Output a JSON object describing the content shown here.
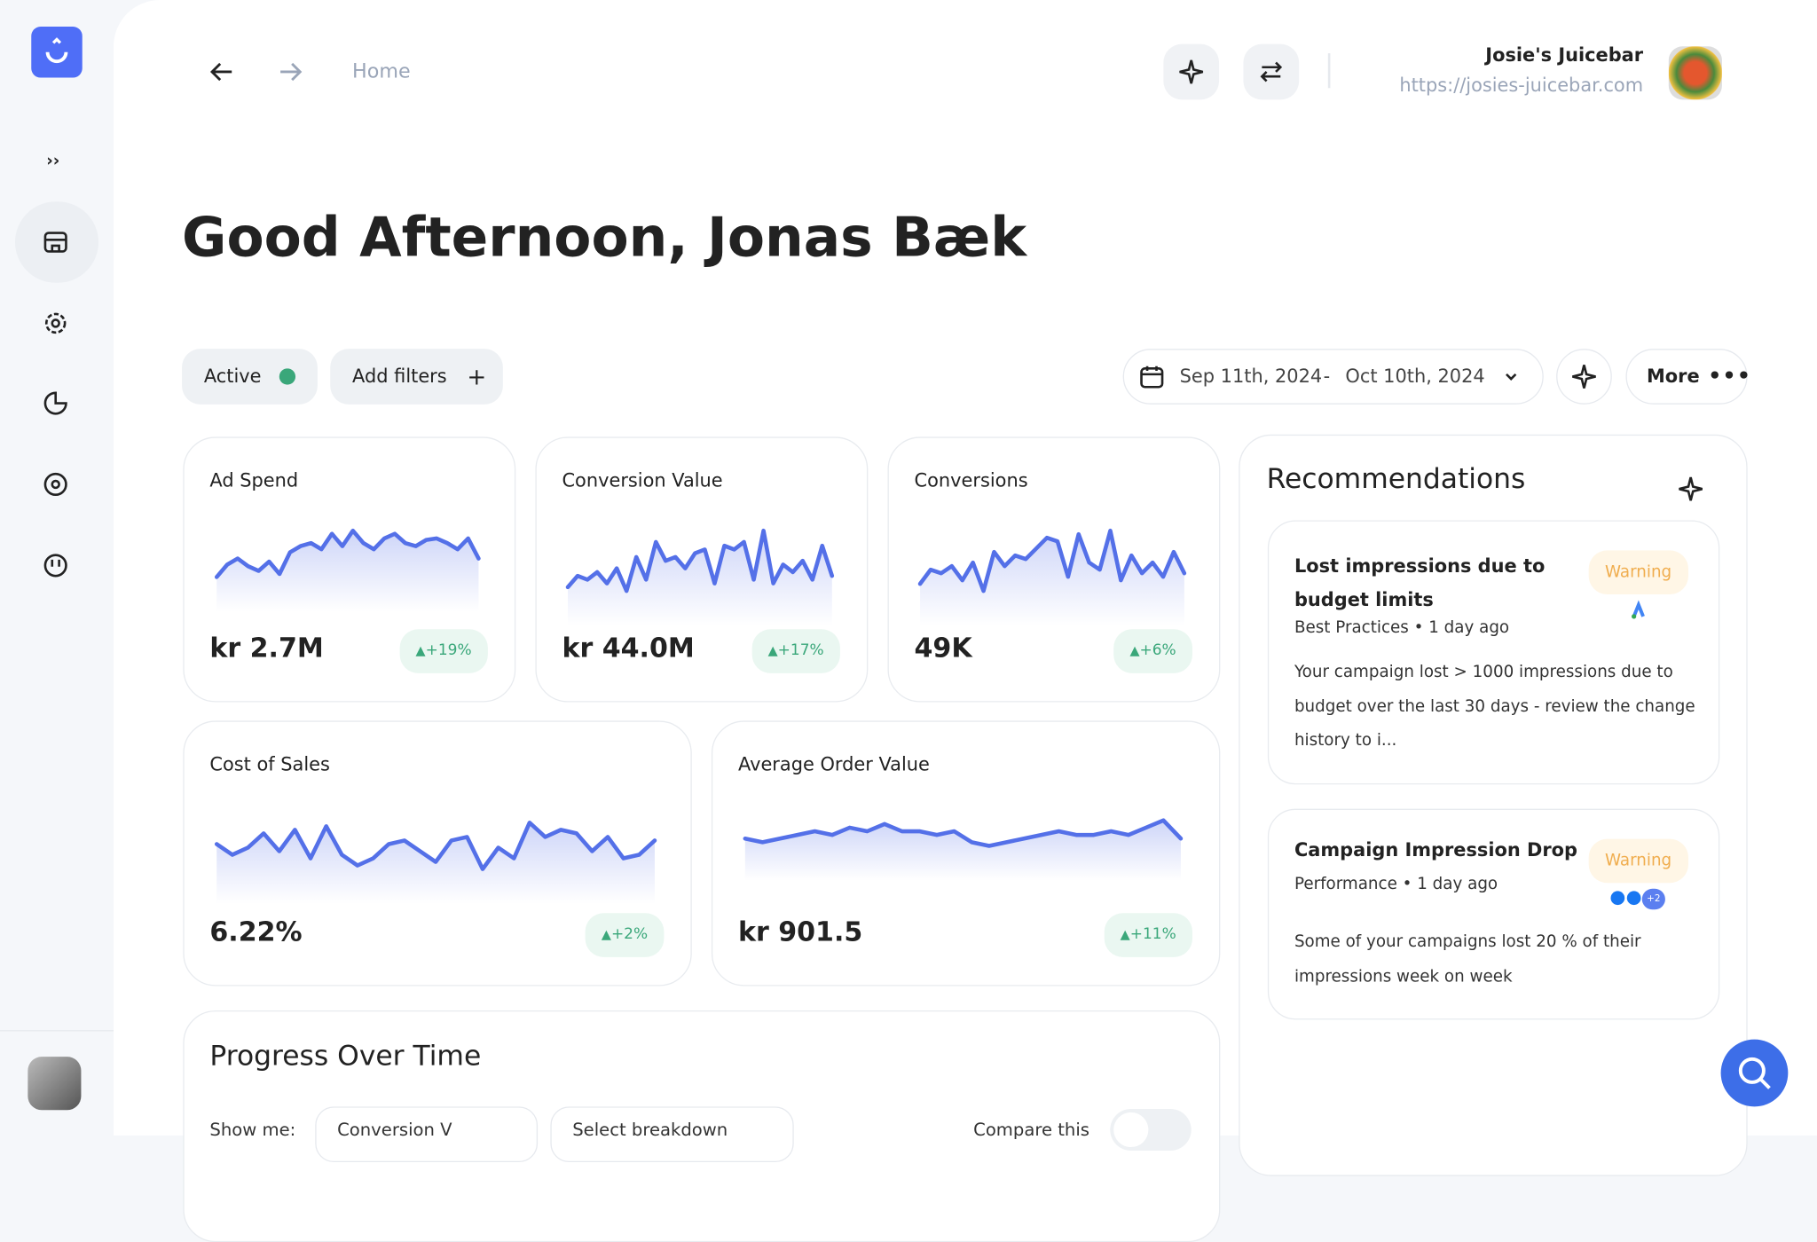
{
  "nav": {
    "home": "Home"
  },
  "account": {
    "name": "Josie's Juicebar",
    "url": "https://josies-juicebar.com"
  },
  "greeting": "Good Afternoon, Jonas Bæk",
  "filters": {
    "active": "Active",
    "add": "Add filters"
  },
  "date_range": {
    "start": "Sep 11th, 2024",
    "separator": "-",
    "end": "Oct 10th, 2024"
  },
  "more": "More",
  "metrics": [
    {
      "title": "Ad Spend",
      "value": "kr 2.7M",
      "change": "+19%",
      "trend": [
        10,
        18,
        22,
        17,
        14,
        20,
        12,
        26,
        30,
        32,
        28,
        38,
        30,
        40,
        32,
        28,
        35,
        38,
        32,
        30,
        34,
        35,
        32,
        28,
        35,
        22
      ]
    },
    {
      "title": "Conversion Value",
      "value": "kr 44.0M",
      "change": "+17%",
      "trend": [
        10,
        16,
        14,
        18,
        12,
        20,
        8,
        26,
        14,
        34,
        24,
        26,
        20,
        28,
        30,
        12,
        32,
        30,
        34,
        14,
        40,
        12,
        22,
        18,
        24,
        14,
        32,
        16
      ]
    },
    {
      "title": "Conversions",
      "value": "49K",
      "change": "+6%",
      "trend": [
        10,
        18,
        16,
        20,
        12,
        22,
        6,
        28,
        20,
        26,
        24,
        30,
        36,
        34,
        14,
        38,
        22,
        18,
        40,
        12,
        26,
        16,
        22,
        14,
        28,
        16
      ]
    },
    {
      "title": "Cost of Sales",
      "value": "6.22%",
      "change": "+2%",
      "trend": [
        24,
        18,
        22,
        30,
        20,
        32,
        16,
        34,
        18,
        12,
        16,
        24,
        26,
        20,
        14,
        26,
        28,
        10,
        22,
        16,
        36,
        28,
        32,
        30,
        20,
        28,
        16,
        18,
        26
      ]
    },
    {
      "title": "Average Order Value",
      "value": "kr 901.5",
      "change": "+11%",
      "trend": [
        20,
        19,
        20,
        21,
        22,
        21,
        23,
        22,
        24,
        22,
        22,
        21,
        22,
        19,
        18,
        19,
        20,
        21,
        22,
        21,
        21,
        22,
        21,
        23,
        25,
        20
      ]
    }
  ],
  "recommendations": {
    "title": "Recommendations",
    "items": [
      {
        "title": "Lost impressions due to budget limits",
        "badge": "Warning",
        "meta": "Best Practices • 1 day ago",
        "body": "Your campaign lost > 1000 impressions due to budget over the last 30 days - review the change history to i..."
      },
      {
        "title": "Campaign Impression Drop",
        "badge": "Warning",
        "meta": "Performance • 1 day ago",
        "extra_channels": "+2",
        "body": "Some of your campaigns lost 20 % of their impressions week on week"
      }
    ]
  },
  "progress": {
    "title": "Progress Over Time",
    "show_me": "Show me:",
    "metric": "Conversion V",
    "breakdown": "Select breakdown",
    "compare": "Compare this"
  }
}
